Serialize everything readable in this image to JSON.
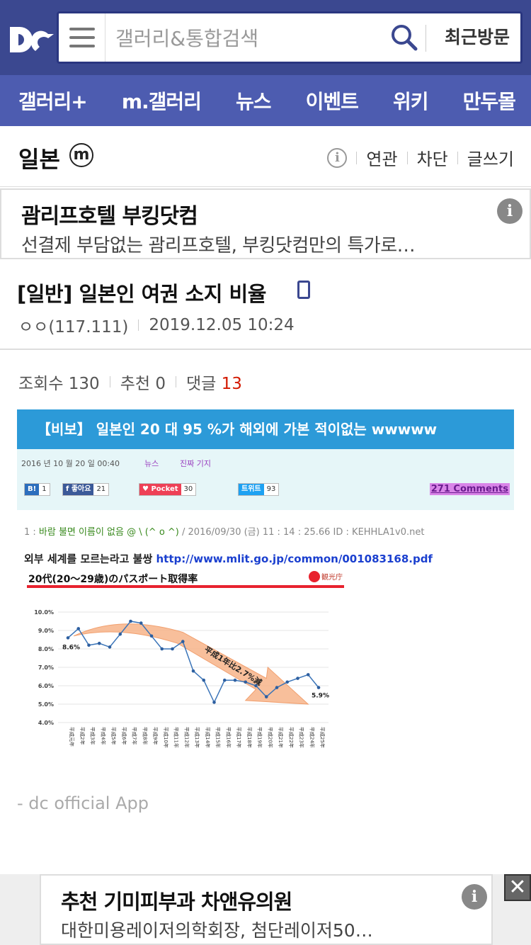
{
  "header": {
    "logo_icon": "dc-logo-icon",
    "search_placeholder": "갤러리&통합검색",
    "recent_label": "최근방문"
  },
  "nav": {
    "items": [
      "갤러리+",
      "m.갤러리",
      "뉴스",
      "이벤트",
      "위키",
      "만두몰"
    ]
  },
  "gallery": {
    "title": "일본",
    "badge": "m",
    "actions": [
      "연관",
      "차단",
      "글쓰기"
    ]
  },
  "ad_top": {
    "title": "괌리프호텔 부킹닷컴",
    "desc": "선결제 부담없는 괌리프호텔, 부킹닷컴만의 특가로…"
  },
  "post": {
    "title": "[일반] 일본인 여권 소지 비율",
    "author": "ㅇㅇ(117.111)",
    "datetime": "2019.12.05 10:24",
    "views_label": "조회수 130",
    "recommend_label": "추천 0",
    "comments_label": "댓글",
    "comments_count": "13"
  },
  "image": {
    "banner": "【비보】 일본인 20 대 95 %가 해외에 가본 적이없는 wwwww",
    "date": "2016 년 10 월 20 일 00:40",
    "cat1": "뉴스",
    "cat2": "진짜 기지",
    "share": [
      {
        "tag": "B!",
        "count": "1",
        "color": "#2c6ebd"
      },
      {
        "tag": "f 좋아요",
        "count": "21",
        "color": "#3b5998"
      },
      {
        "tag": "♥ Pocket",
        "count": "30",
        "color": "#ee4056"
      },
      {
        "tag": "트위트",
        "count": "93",
        "color": "#1da1f2"
      }
    ],
    "comments_link": "271 Comments",
    "bbs_num": "1 : ",
    "bbs_name": "바람 불면 이름이 없음 @ \\ (^ o ^)",
    "bbs_rest": " / 2016/09/30 (금) 11 : 14 : 25.66 ID : KEHHLA1v0.net",
    "ext_text": "외부 세계를 모르는라고 불쌍 ",
    "ext_link": "http://www.mlit.go.jp/common/001083168.pdf"
  },
  "chart_data": {
    "type": "line",
    "title": "20代(20～29歳)のパスポート取得率",
    "source": "観光庁",
    "arrow_label": "平成1年比2.7%減",
    "ylim": [
      4.0,
      10.0
    ],
    "yticks": [
      "10.0%",
      "9.0%",
      "8.0%",
      "7.0%",
      "6.0%",
      "5.0%",
      "4.0%"
    ],
    "categories": [
      "平成元年",
      "平成2年",
      "平成3年",
      "平成4年",
      "平成5年",
      "平成6年",
      "平成7年",
      "平成8年",
      "平成9年",
      "平成10年",
      "平成11年",
      "平成12年",
      "平成13年",
      "平成14年",
      "平成15年",
      "平成16年",
      "平成17年",
      "平成18年",
      "平成19年",
      "平成20年",
      "平成21年",
      "平成22年",
      "平成23年",
      "平成24年",
      "平成25年"
    ],
    "values": [
      8.6,
      9.1,
      8.2,
      8.3,
      8.1,
      8.8,
      9.5,
      9.4,
      8.7,
      8.0,
      8.0,
      8.4,
      6.8,
      6.3,
      5.1,
      6.3,
      6.3,
      6.2,
      6.0,
      5.4,
      5.9,
      6.2,
      6.4,
      6.6,
      5.9
    ],
    "labels": {
      "first": "8.6%",
      "last": "5.9%"
    }
  },
  "footer": {
    "app_sig": "- dc official App"
  },
  "ad_bottom": {
    "title": "추천 기미피부과 차앤유의원",
    "desc": "대한미용레이저의학회장, 첨단레이저50…",
    "close": "✕"
  }
}
